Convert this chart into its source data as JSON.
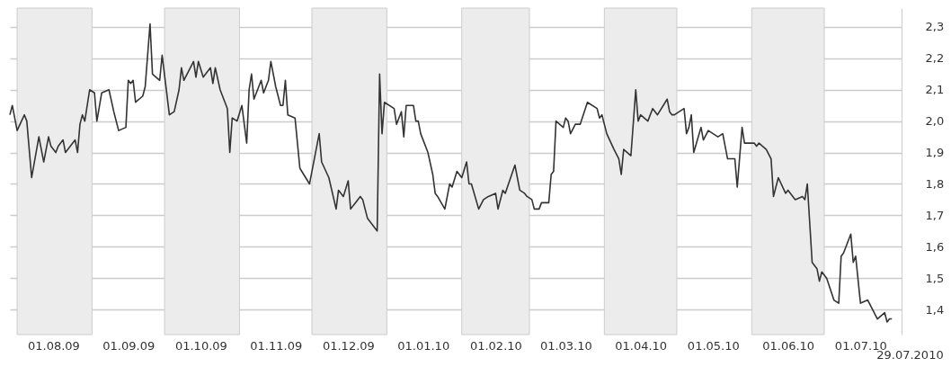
{
  "chart_data": {
    "type": "line",
    "x": [
      "2009-07-29",
      "2009-07-30",
      "2009-08-01",
      "2009-08-04",
      "2009-08-05",
      "2009-08-07",
      "2009-08-10",
      "2009-08-12",
      "2009-08-14",
      "2009-08-15",
      "2009-08-17",
      "2009-08-18",
      "2009-08-20",
      "2009-08-21",
      "2009-08-25",
      "2009-08-26",
      "2009-08-27",
      "2009-08-28",
      "2009-08-29",
      "2009-08-31",
      "2009-09-02",
      "2009-09-03",
      "2009-09-05",
      "2009-09-08",
      "2009-09-10",
      "2009-09-12",
      "2009-09-15",
      "2009-09-16",
      "2009-09-17",
      "2009-09-18",
      "2009-09-19",
      "2009-09-22",
      "2009-09-23",
      "2009-09-25",
      "2009-09-26",
      "2009-09-29",
      "2009-09-30",
      "2009-10-03",
      "2009-10-05",
      "2009-10-07",
      "2009-10-08",
      "2009-10-09",
      "2009-10-13",
      "2009-10-14",
      "2009-10-15",
      "2009-10-17",
      "2009-10-20",
      "2009-10-21",
      "2009-10-22",
      "2009-10-24",
      "2009-10-27",
      "2009-10-28",
      "2009-10-29",
      "2009-10-31",
      "2009-11-02",
      "2009-11-04",
      "2009-11-05",
      "2009-11-06",
      "2009-11-07",
      "2009-11-10",
      "2009-11-11",
      "2009-11-13",
      "2009-11-14",
      "2009-11-16",
      "2009-11-18",
      "2009-11-19",
      "2009-11-20",
      "2009-11-21",
      "2009-11-24",
      "2009-11-26",
      "2009-11-30",
      "2009-12-04",
      "2009-12-05",
      "2009-12-08",
      "2009-12-11",
      "2009-12-12",
      "2009-12-14",
      "2009-12-16",
      "2009-12-17",
      "2009-12-19",
      "2009-12-21",
      "2009-12-22",
      "2009-12-24",
      "2009-12-28",
      "2009-12-29",
      "2009-12-30",
      "2009-12-31",
      "2010-01-04",
      "2010-01-05",
      "2010-01-07",
      "2010-01-08",
      "2010-01-09",
      "2010-01-12",
      "2010-01-13",
      "2010-01-14",
      "2010-01-15",
      "2010-01-18",
      "2010-01-20",
      "2010-01-21",
      "2010-01-22",
      "2010-01-25",
      "2010-01-27",
      "2010-01-28",
      "2010-01-30",
      "2010-02-01",
      "2010-02-03",
      "2010-02-04",
      "2010-02-05",
      "2010-02-08",
      "2010-02-10",
      "2010-02-12",
      "2010-02-15",
      "2010-02-16",
      "2010-02-18",
      "2010-02-19",
      "2010-02-23",
      "2010-02-25",
      "2010-02-27",
      "2010-02-28",
      "2010-03-02",
      "2010-03-03",
      "2010-03-05",
      "2010-03-06",
      "2010-03-09",
      "2010-03-10",
      "2010-03-11",
      "2010-03-12",
      "2010-03-15",
      "2010-03-16",
      "2010-03-17",
      "2010-03-18",
      "2010-03-20",
      "2010-03-22",
      "2010-03-25",
      "2010-03-29",
      "2010-03-30",
      "2010-03-31",
      "2010-04-02",
      "2010-04-05",
      "2010-04-07",
      "2010-04-08",
      "2010-04-09",
      "2010-04-12",
      "2010-04-14",
      "2010-04-15",
      "2010-04-16",
      "2010-04-19",
      "2010-04-21",
      "2010-04-23",
      "2010-04-27",
      "2010-04-28",
      "2010-04-29",
      "2010-04-30",
      "2010-05-04",
      "2010-05-05",
      "2010-05-06",
      "2010-05-07",
      "2010-05-08",
      "2010-05-11",
      "2010-05-12",
      "2010-05-14",
      "2010-05-16",
      "2010-05-18",
      "2010-05-20",
      "2010-05-22",
      "2010-05-25",
      "2010-05-26",
      "2010-05-28",
      "2010-05-29",
      "2010-06-02",
      "2010-06-03",
      "2010-06-04",
      "2010-06-07",
      "2010-06-09",
      "2010-06-10",
      "2010-06-12",
      "2010-06-15",
      "2010-06-16",
      "2010-06-19",
      "2010-06-22",
      "2010-06-23",
      "2010-06-24",
      "2010-06-26",
      "2010-06-28",
      "2010-06-29",
      "2010-06-30",
      "2010-07-02",
      "2010-07-05",
      "2010-07-07",
      "2010-07-08",
      "2010-07-09",
      "2010-07-12",
      "2010-07-13",
      "2010-07-14",
      "2010-07-16",
      "2010-07-19",
      "2010-07-21",
      "2010-07-23",
      "2010-07-26",
      "2010-07-27",
      "2010-07-28",
      "2010-07-29"
    ],
    "series": [
      {
        "color": "#333333",
        "values": [
          2.02,
          2.05,
          1.97,
          2.02,
          2.0,
          1.82,
          1.95,
          1.87,
          1.95,
          1.92,
          1.9,
          1.92,
          1.94,
          1.9,
          1.94,
          1.9,
          1.99,
          2.02,
          2.0,
          2.1,
          2.09,
          2.0,
          2.09,
          2.1,
          2.03,
          1.97,
          1.98,
          2.13,
          2.12,
          2.13,
          2.06,
          2.08,
          2.11,
          2.31,
          2.15,
          2.13,
          2.21,
          2.02,
          2.03,
          2.1,
          2.17,
          2.13,
          2.19,
          2.14,
          2.19,
          2.14,
          2.17,
          2.12,
          2.17,
          2.1,
          2.04,
          1.9,
          2.01,
          2.0,
          2.05,
          1.93,
          2.1,
          2.15,
          2.07,
          2.13,
          2.09,
          2.13,
          2.19,
          2.11,
          2.05,
          2.05,
          2.13,
          2.02,
          2.01,
          1.85,
          1.8,
          1.96,
          1.87,
          1.82,
          1.72,
          1.78,
          1.76,
          1.81,
          1.72,
          1.74,
          1.76,
          1.75,
          1.69,
          1.65,
          2.15,
          1.96,
          2.06,
          2.04,
          1.99,
          2.03,
          1.95,
          2.05,
          2.05,
          2.0,
          2.0,
          1.96,
          1.9,
          1.83,
          1.77,
          1.76,
          1.72,
          1.8,
          1.79,
          1.84,
          1.82,
          1.87,
          1.8,
          1.8,
          1.72,
          1.75,
          1.76,
          1.77,
          1.72,
          1.78,
          1.77,
          1.86,
          1.78,
          1.77,
          1.76,
          1.75,
          1.72,
          1.72,
          1.74,
          1.74,
          1.83,
          1.84,
          2.0,
          1.98,
          2.01,
          2.0,
          1.96,
          1.99,
          1.99,
          2.06,
          2.04,
          2.01,
          2.02,
          1.96,
          1.91,
          1.88,
          1.83,
          1.91,
          1.89,
          2.1,
          2.0,
          2.02,
          2.0,
          2.04,
          2.02,
          2.07,
          2.03,
          2.02,
          2.02,
          2.04,
          1.96,
          1.98,
          2.02,
          1.9,
          1.98,
          1.94,
          1.97,
          1.96,
          1.95,
          1.96,
          1.88,
          1.88,
          1.79,
          1.98,
          1.93,
          1.93,
          1.92,
          1.93,
          1.91,
          1.88,
          1.76,
          1.82,
          1.77,
          1.78,
          1.75,
          1.76,
          1.75,
          1.8,
          1.55,
          1.53,
          1.49,
          1.52,
          1.5,
          1.43,
          1.42,
          1.57,
          1.58,
          1.64,
          1.55,
          1.57,
          1.42,
          1.43,
          1.4,
          1.37,
          1.39,
          1.36,
          1.37,
          1.37
        ]
      }
    ],
    "xlim": [
      "2009-07-29",
      "2010-08-02"
    ],
    "xticks": [
      {
        "value": "2009-08-16",
        "label": "01.08.09"
      },
      {
        "value": "2009-09-16",
        "label": "01.09.09"
      },
      {
        "value": "2009-10-16",
        "label": "01.10.09"
      },
      {
        "value": "2009-11-16",
        "label": "01.11.09"
      },
      {
        "value": "2009-12-16",
        "label": "01.12.09"
      },
      {
        "value": "2010-01-16",
        "label": "01.01.10"
      },
      {
        "value": "2010-02-15",
        "label": "01.02.10"
      },
      {
        "value": "2010-03-16",
        "label": "01.03.10"
      },
      {
        "value": "2010-04-16",
        "label": "01.04.10"
      },
      {
        "value": "2010-05-16",
        "label": "01.05.10"
      },
      {
        "value": "2010-06-16",
        "label": "01.06.10"
      },
      {
        "value": "2010-07-16",
        "label": "01.07.10"
      }
    ],
    "ylim": [
      1.32,
      2.36
    ],
    "yticks": [
      {
        "value": 1.4,
        "label": "1,4"
      },
      {
        "value": 1.5,
        "label": "1,5"
      },
      {
        "value": 1.6,
        "label": "1,6"
      },
      {
        "value": 1.7,
        "label": "1,7"
      },
      {
        "value": 1.8,
        "label": "1,8"
      },
      {
        "value": 1.9,
        "label": "1,9"
      },
      {
        "value": 2.0,
        "label": "2,0"
      },
      {
        "value": 2.1,
        "label": "2,1"
      },
      {
        "value": 2.2,
        "label": "2,2"
      },
      {
        "value": 2.3,
        "label": "2,3"
      }
    ],
    "bands": [
      {
        "axis": "x",
        "from": "2009-08-01",
        "to": "2009-09-01",
        "color": "#ececec"
      },
      {
        "axis": "x",
        "from": "2009-10-01",
        "to": "2009-11-01",
        "color": "#ececec"
      },
      {
        "axis": "x",
        "from": "2009-12-01",
        "to": "2010-01-01",
        "color": "#ececec"
      },
      {
        "axis": "x",
        "from": "2010-02-01",
        "to": "2010-03-01",
        "color": "#ececec"
      },
      {
        "axis": "x",
        "from": "2010-04-01",
        "to": "2010-05-01",
        "color": "#ececec"
      },
      {
        "axis": "x",
        "from": "2010-06-01",
        "to": "2010-07-01",
        "color": "#ececec"
      }
    ],
    "annotations": [
      "29.07.2010"
    ],
    "grid": "y"
  }
}
